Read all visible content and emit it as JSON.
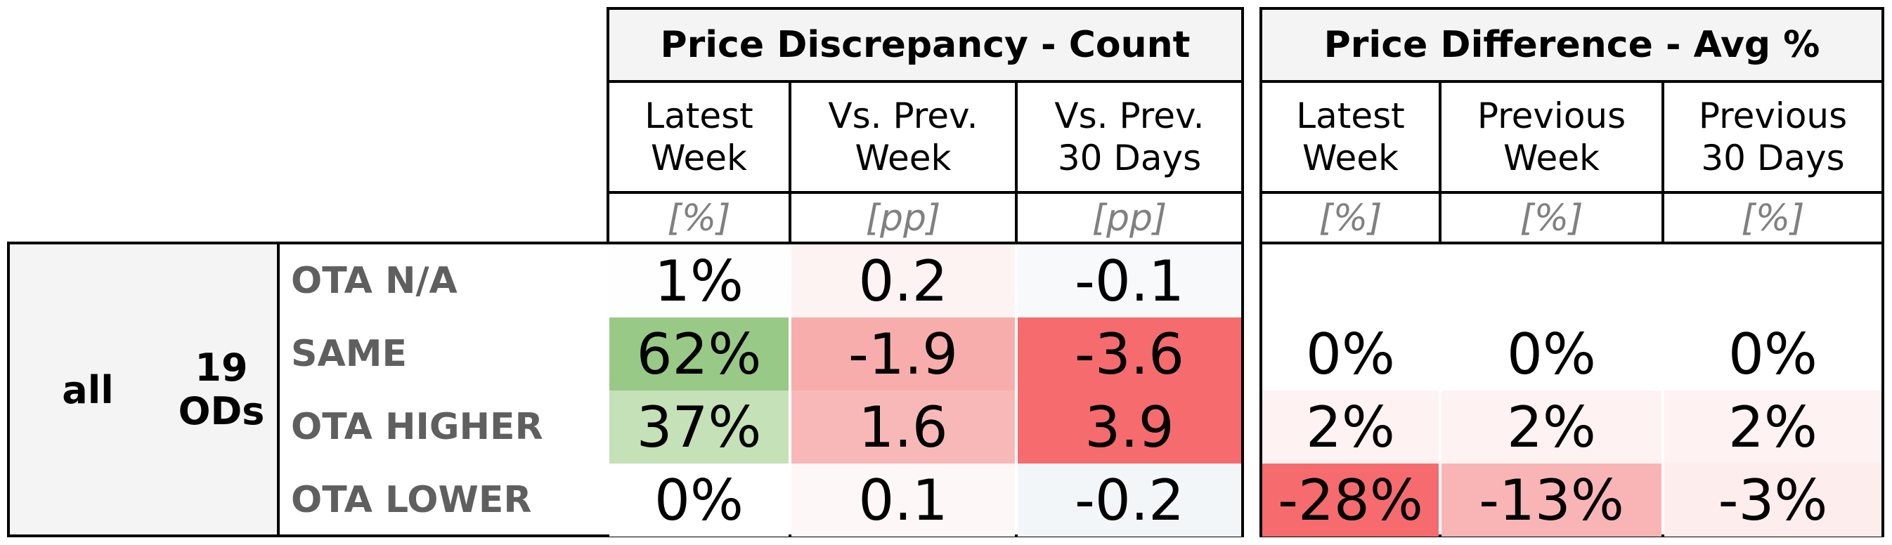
{
  "table": {
    "left_title": "Price Discrepancy - Count",
    "right_title": "Price Difference - Avg %",
    "left_columns": [
      {
        "label": "Latest\nWeek",
        "unit": "[%]"
      },
      {
        "label": "Vs. Prev.\nWeek",
        "unit": "[pp]"
      },
      {
        "label": "Vs. Prev.\n30 Days",
        "unit": "[pp]"
      }
    ],
    "right_columns": [
      {
        "label": "Latest\nWeek",
        "unit": "[%]"
      },
      {
        "label": "Previous\nWeek",
        "unit": "[%]"
      },
      {
        "label": "Previous\n30 Days",
        "unit": "[%]"
      }
    ],
    "group": {
      "name": "all",
      "ods": "19\nODs"
    },
    "rows": [
      {
        "label": "OTA N/A",
        "left": [
          {
            "text": "1%",
            "color": "#fefefe"
          },
          {
            "text": "0.2",
            "color": "#fef3f3"
          },
          {
            "text": "-0.1",
            "color": "#f8f9fb"
          }
        ],
        "right": [
          {
            "text": "",
            "color": "#ffffff"
          },
          {
            "text": "",
            "color": "#ffffff"
          },
          {
            "text": "",
            "color": "#ffffff"
          }
        ]
      },
      {
        "label": "SAME",
        "left": [
          {
            "text": "62%",
            "color": "#99c986"
          },
          {
            "text": "-1.9",
            "color": "#f8adad"
          },
          {
            "text": "-3.6",
            "color": "#f56b6e"
          }
        ],
        "right": [
          {
            "text": "0%",
            "color": "#ffffff"
          },
          {
            "text": "0%",
            "color": "#ffffff"
          },
          {
            "text": "0%",
            "color": "#ffffff"
          }
        ]
      },
      {
        "label": "OTA HIGHER",
        "left": [
          {
            "text": "37%",
            "color": "#c4e1b7"
          },
          {
            "text": "1.6",
            "color": "#f9b8b8"
          },
          {
            "text": "3.9",
            "color": "#f56b6e"
          }
        ],
        "right": [
          {
            "text": "2%",
            "color": "#fef2f2"
          },
          {
            "text": "2%",
            "color": "#fef2f2"
          },
          {
            "text": "2%",
            "color": "#fef2f2"
          }
        ]
      },
      {
        "label": "OTA LOWER",
        "left": [
          {
            "text": "0%",
            "color": "#ffffff"
          },
          {
            "text": "0.1",
            "color": "#fef7f7"
          },
          {
            "text": "-0.2",
            "color": "#f3f6f9"
          }
        ],
        "right": [
          {
            "text": "-28%",
            "color": "#f56b6e"
          },
          {
            "text": "-13%",
            "color": "#f9b5b5"
          },
          {
            "text": "-3%",
            "color": "#fdeded"
          }
        ]
      }
    ]
  }
}
